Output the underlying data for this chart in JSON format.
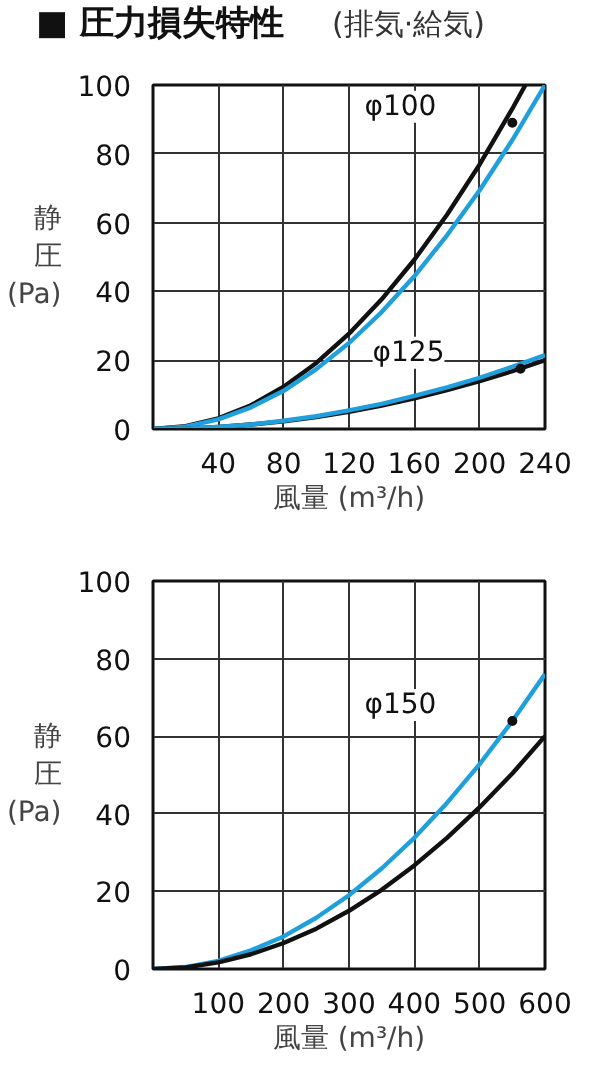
{
  "chart_data": [
    {
      "type": "line",
      "title": "■ 圧力損失特性",
      "subtitle": "(排気·給気)",
      "xlabel": "風量 (m³/h)",
      "ylabel": "静圧(Pa)",
      "x": [
        0,
        20,
        40,
        60,
        80,
        100,
        120,
        140,
        160,
        180,
        200,
        220,
        240
      ],
      "series": [
        {
          "color": "#111111",
          "x": [
            0,
            20,
            40,
            60,
            80,
            100,
            120,
            140,
            160,
            180,
            200,
            220,
            228
          ],
          "values": [
            0,
            0.8,
            3.1,
            6.9,
            12.3,
            19.2,
            27.7,
            37.7,
            49.2,
            62.3,
            76.9,
            93.1,
            100
          ]
        },
        {
          "color": "#1fa0dc",
          "values": [
            0,
            0.7,
            2.8,
            6.3,
            11.1,
            17.4,
            25,
            34,
            44.4,
            56.3,
            69.4,
            84,
            100
          ]
        },
        {
          "color": "#111111",
          "values": [
            0,
            0.1,
            0.6,
            1.3,
            2.2,
            3.5,
            5,
            6.8,
            8.9,
            11.3,
            13.9,
            16.8,
            20
          ]
        },
        {
          "color": "#1fa0dc",
          "values": [
            0,
            0.1,
            0.6,
            1.3,
            2.4,
            3.7,
            5.4,
            7.3,
            9.6,
            12.1,
            14.9,
            18.1,
            21.5
          ]
        }
      ],
      "annotations": [
        {
          "text": "φ100",
          "x": 220,
          "y": 89
        },
        {
          "text": "φ125",
          "x": 225,
          "y": 17.5
        }
      ],
      "xlim": [
        0,
        240
      ],
      "ylim": [
        0,
        100
      ],
      "xticks": [
        40,
        80,
        120,
        160,
        200,
        240
      ],
      "yticks": [
        0,
        20,
        40,
        60,
        80,
        100
      ],
      "grid": true,
      "marker": "none",
      "line_style": "solid"
    },
    {
      "type": "line",
      "xlabel": "風量 (m³/h)",
      "ylabel": "静圧(Pa)",
      "x": [
        0,
        50,
        100,
        150,
        200,
        250,
        300,
        350,
        400,
        450,
        500,
        550,
        600
      ],
      "series": [
        {
          "color": "#1fa0dc",
          "values": [
            0,
            0.5,
            2.1,
            4.8,
            8.4,
            13.2,
            19,
            25.9,
            33.8,
            42.8,
            52.8,
            63.9,
            76
          ]
        },
        {
          "color": "#111111",
          "values": [
            0,
            0.4,
            1.7,
            3.8,
            6.7,
            10.4,
            15,
            20.4,
            26.7,
            33.8,
            41.7,
            50.4,
            60
          ]
        }
      ],
      "annotations": [
        {
          "text": "φ150",
          "x": 550,
          "y": 63.9
        }
      ],
      "xlim": [
        0,
        600
      ],
      "ylim": [
        0,
        100
      ],
      "xticks": [
        100,
        200,
        300,
        400,
        500,
        600
      ],
      "yticks": [
        0,
        20,
        40,
        60,
        80,
        100
      ],
      "grid": true,
      "marker": "none",
      "line_style": "solid"
    }
  ]
}
